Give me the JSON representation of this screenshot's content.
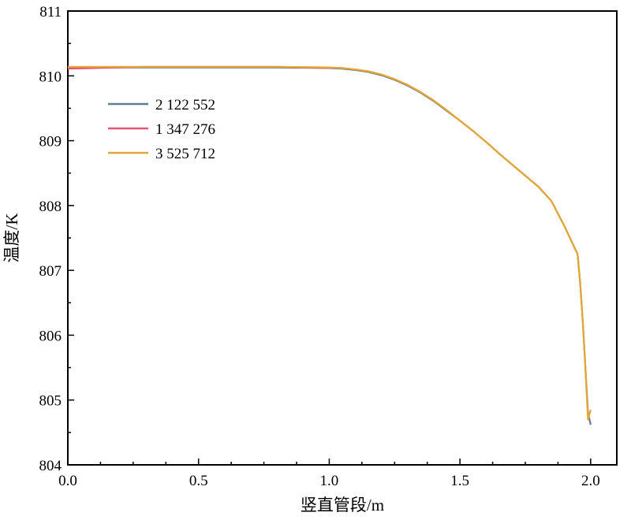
{
  "chart_data": {
    "type": "line",
    "title": "",
    "xlabel": "竖直管段/m",
    "ylabel": "温度/K",
    "xlim": [
      0.0,
      2.1
    ],
    "ylim": [
      804,
      811
    ],
    "x_ticks": [
      0.0,
      0.5,
      1.0,
      1.5,
      2.0
    ],
    "x_tick_labels": [
      "0.0",
      "0.5",
      "1.0",
      "1.5",
      "2.0"
    ],
    "y_ticks": [
      804,
      805,
      806,
      807,
      808,
      809,
      810,
      811
    ],
    "y_tick_labels": [
      "804",
      "805",
      "806",
      "807",
      "808",
      "809",
      "810",
      "811"
    ],
    "grid": false,
    "legend_position": "upper-left",
    "series": [
      {
        "name": "2 122 552",
        "color": "#5f7f8c",
        "x": [
          0.0,
          0.2,
          0.4,
          0.6,
          0.8,
          1.0,
          1.05,
          1.1,
          1.15,
          1.2,
          1.25,
          1.3,
          1.35,
          1.4,
          1.45,
          1.5,
          1.55,
          1.6,
          1.65,
          1.7,
          1.75,
          1.8,
          1.85,
          1.9,
          1.93,
          1.95,
          1.96,
          1.97,
          1.98,
          1.99,
          2.0
        ],
        "y": [
          810.12,
          810.13,
          810.13,
          810.13,
          810.13,
          810.12,
          810.11,
          810.09,
          810.06,
          810.01,
          809.94,
          809.85,
          809.74,
          809.61,
          809.46,
          809.31,
          809.15,
          808.98,
          808.8,
          808.63,
          808.46,
          808.29,
          808.07,
          807.68,
          807.42,
          807.25,
          806.8,
          806.2,
          805.5,
          804.8,
          804.62
        ]
      },
      {
        "name": "1 347 276",
        "color": "#e8546c",
        "x": [
          0.0,
          0.1,
          0.2,
          0.3,
          0.4,
          0.5,
          0.6,
          0.7,
          0.8,
          0.9,
          1.0
        ],
        "y": [
          810.11,
          810.12,
          810.13,
          810.14,
          810.14,
          810.14,
          810.14,
          810.14,
          810.14,
          810.13,
          810.12
        ]
      },
      {
        "name": "3 525 712",
        "color": "#e6a633",
        "x": [
          0.0,
          0.2,
          0.4,
          0.6,
          0.8,
          1.0,
          1.05,
          1.1,
          1.15,
          1.2,
          1.25,
          1.3,
          1.35,
          1.4,
          1.45,
          1.5,
          1.55,
          1.6,
          1.65,
          1.7,
          1.75,
          1.8,
          1.85,
          1.9,
          1.93,
          1.95,
          1.96,
          1.97,
          1.98,
          1.99,
          2.0
        ],
        "y": [
          810.14,
          810.14,
          810.14,
          810.14,
          810.14,
          810.13,
          810.12,
          810.1,
          810.07,
          810.02,
          809.95,
          809.86,
          809.75,
          809.62,
          809.47,
          809.31,
          809.15,
          808.98,
          808.8,
          808.63,
          808.46,
          808.29,
          808.07,
          807.68,
          807.42,
          807.25,
          806.8,
          806.2,
          805.5,
          804.7,
          804.85
        ]
      }
    ]
  }
}
